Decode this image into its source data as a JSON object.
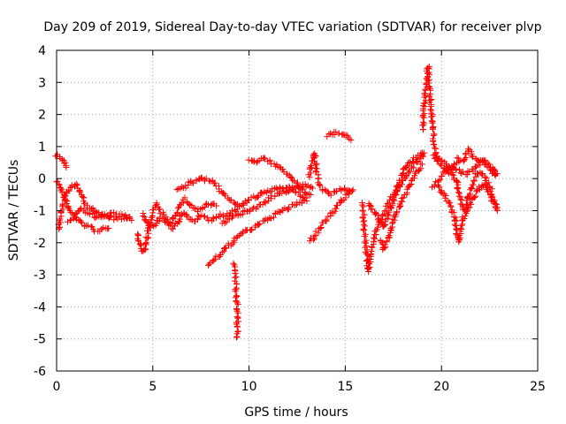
{
  "chart_data": {
    "type": "scatter",
    "title": "Day 209 of 2019, Sidereal Day-to-day VTEC variation (SDTVAR) for receiver plvp",
    "xlabel": "GPS time / hours",
    "ylabel": "SDTVAR / TECUs",
    "xlim": [
      0,
      25
    ],
    "ylim": [
      -6,
      4
    ],
    "xticks": [
      0,
      5,
      10,
      15,
      20,
      25
    ],
    "yticks": [
      -6,
      -5,
      -4,
      -3,
      -2,
      -1,
      0,
      1,
      2,
      3,
      4
    ],
    "grid": true,
    "marker": "+",
    "series_color": "#ff0000",
    "tracks": [
      [
        [
          0.0,
          0.75
        ],
        [
          0.2,
          0.65
        ],
        [
          0.4,
          0.5
        ],
        [
          0.5,
          0.35
        ]
      ],
      [
        [
          0.0,
          -0.05
        ],
        [
          0.2,
          -0.3
        ],
        [
          0.4,
          -0.6
        ],
        [
          0.6,
          -0.9
        ],
        [
          0.8,
          -1.1
        ],
        [
          1.1,
          -1.3
        ],
        [
          1.5,
          -1.45
        ],
        [
          2.0,
          -1.6
        ],
        [
          2.4,
          -1.6
        ],
        [
          2.7,
          -1.55
        ]
      ],
      [
        [
          0.1,
          -1.6
        ],
        [
          0.25,
          -1.1
        ],
        [
          0.45,
          -0.5
        ],
        [
          0.7,
          -0.3
        ],
        [
          0.95,
          -0.15
        ],
        [
          1.2,
          -0.4
        ],
        [
          1.5,
          -0.8
        ],
        [
          1.9,
          -1.0
        ],
        [
          2.3,
          -1.15
        ],
        [
          2.7,
          -1.2
        ],
        [
          3.1,
          -1.25
        ],
        [
          3.5,
          -1.25
        ],
        [
          3.9,
          -1.3
        ]
      ],
      [
        [
          0.6,
          -1.3
        ],
        [
          0.9,
          -1.2
        ],
        [
          1.2,
          -0.9
        ],
        [
          1.6,
          -1.05
        ],
        [
          2.0,
          -1.2
        ],
        [
          2.4,
          -1.15
        ],
        [
          2.9,
          -1.1
        ],
        [
          3.3,
          -1.15
        ],
        [
          3.8,
          -1.2
        ]
      ],
      [
        [
          4.2,
          -1.7
        ],
        [
          4.4,
          -2.3
        ],
        [
          4.6,
          -2.15
        ],
        [
          4.8,
          -1.5
        ],
        [
          5.0,
          -1.0
        ],
        [
          5.2,
          -0.8
        ],
        [
          5.5,
          -1.1
        ],
        [
          5.8,
          -1.4
        ],
        [
          6.1,
          -1.2
        ],
        [
          6.4,
          -0.8
        ],
        [
          6.7,
          -0.65
        ],
        [
          7.0,
          -0.85
        ],
        [
          7.3,
          -1.0
        ],
        [
          7.6,
          -0.9
        ],
        [
          7.9,
          -0.8
        ],
        [
          8.3,
          -0.85
        ]
      ],
      [
        [
          4.5,
          -1.1
        ],
        [
          4.8,
          -1.5
        ],
        [
          5.1,
          -1.45
        ],
        [
          5.4,
          -1.2
        ],
        [
          5.7,
          -1.35
        ],
        [
          6.0,
          -1.55
        ],
        [
          6.3,
          -1.35
        ],
        [
          6.6,
          -1.05
        ],
        [
          6.9,
          -1.25
        ],
        [
          7.2,
          -1.3
        ],
        [
          7.5,
          -1.15
        ],
        [
          7.8,
          -1.25
        ],
        [
          8.1,
          -1.3
        ],
        [
          8.4,
          -1.15
        ],
        [
          8.7,
          -1.2
        ],
        [
          9.0,
          -1.05
        ],
        [
          9.4,
          -0.95
        ],
        [
          9.8,
          -0.75
        ],
        [
          10.2,
          -0.6
        ],
        [
          10.6,
          -0.5
        ],
        [
          11.0,
          -0.4
        ],
        [
          11.4,
          -0.3
        ],
        [
          11.8,
          -0.25
        ],
        [
          12.2,
          -0.3
        ],
        [
          12.6,
          -0.5
        ],
        [
          13.0,
          -0.6
        ]
      ],
      [
        [
          6.3,
          -0.35
        ],
        [
          6.6,
          -0.3
        ],
        [
          6.9,
          -0.15
        ],
        [
          7.3,
          -0.05
        ],
        [
          7.6,
          0.0
        ],
        [
          7.9,
          -0.05
        ],
        [
          8.2,
          -0.15
        ],
        [
          8.5,
          -0.35
        ],
        [
          8.8,
          -0.55
        ],
        [
          9.1,
          -0.7
        ],
        [
          9.4,
          -0.8
        ]
      ],
      [
        [
          7.9,
          -2.7
        ],
        [
          8.2,
          -2.55
        ],
        [
          8.5,
          -2.35
        ],
        [
          8.8,
          -2.2
        ],
        [
          9.1,
          -2.0
        ],
        [
          9.4,
          -1.8
        ],
        [
          9.8,
          -1.65
        ],
        [
          10.2,
          -1.55
        ],
        [
          10.6,
          -1.4
        ],
        [
          11.0,
          -1.25
        ],
        [
          11.4,
          -1.1
        ],
        [
          11.8,
          -1.0
        ],
        [
          12.2,
          -0.85
        ],
        [
          12.6,
          -0.75
        ],
        [
          13.0,
          -0.7
        ]
      ],
      [
        [
          9.2,
          -2.6
        ],
        [
          9.3,
          -3.1
        ],
        [
          9.35,
          -3.6
        ],
        [
          9.4,
          -4.2
        ],
        [
          9.4,
          -4.6
        ],
        [
          9.35,
          -4.95
        ]
      ],
      [
        [
          10.0,
          0.6
        ],
        [
          10.4,
          0.55
        ],
        [
          10.8,
          0.6
        ],
        [
          11.2,
          0.5
        ],
        [
          11.6,
          0.3
        ],
        [
          12.0,
          0.15
        ],
        [
          12.3,
          -0.05
        ],
        [
          12.6,
          -0.25
        ],
        [
          12.9,
          -0.4
        ],
        [
          13.2,
          -0.5
        ]
      ],
      [
        [
          8.6,
          -1.4
        ],
        [
          8.9,
          -1.3
        ],
        [
          9.3,
          -1.15
        ],
        [
          9.7,
          -1.05
        ],
        [
          10.1,
          -0.95
        ],
        [
          10.5,
          -0.85
        ],
        [
          10.9,
          -0.7
        ],
        [
          11.3,
          -0.55
        ],
        [
          11.7,
          -0.45
        ],
        [
          12.1,
          -0.35
        ],
        [
          12.5,
          -0.25
        ],
        [
          12.9,
          -0.2
        ],
        [
          13.3,
          -0.3
        ]
      ],
      [
        [
          13.1,
          0.1
        ],
        [
          13.3,
          0.5
        ],
        [
          13.4,
          0.8
        ],
        [
          13.5,
          0.3
        ],
        [
          13.6,
          -0.1
        ],
        [
          13.8,
          -0.3
        ],
        [
          14.2,
          -0.5
        ],
        [
          14.6,
          -0.35
        ],
        [
          15.0,
          -0.3
        ],
        [
          15.3,
          -0.4
        ]
      ],
      [
        [
          13.2,
          -1.95
        ],
        [
          13.6,
          -1.6
        ],
        [
          14.0,
          -1.3
        ],
        [
          14.4,
          -1.05
        ],
        [
          14.8,
          -0.7
        ],
        [
          15.2,
          -0.45
        ],
        [
          15.4,
          -0.35
        ]
      ],
      [
        [
          14.1,
          1.35
        ],
        [
          14.4,
          1.4
        ],
        [
          14.7,
          1.45
        ],
        [
          15.0,
          1.35
        ],
        [
          15.3,
          1.2
        ]
      ],
      [
        [
          15.9,
          -0.8
        ],
        [
          16.0,
          -1.6
        ],
        [
          16.1,
          -2.3
        ],
        [
          16.2,
          -2.9
        ],
        [
          16.4,
          -2.1
        ],
        [
          16.6,
          -1.6
        ],
        [
          16.9,
          -1.2
        ],
        [
          17.2,
          -0.8
        ],
        [
          17.6,
          -0.4
        ],
        [
          18.0,
          -0.05
        ],
        [
          18.4,
          0.3
        ],
        [
          18.8,
          0.55
        ],
        [
          19.1,
          0.8
        ]
      ],
      [
        [
          16.2,
          -0.75
        ],
        [
          16.5,
          -1.0
        ],
        [
          16.8,
          -1.3
        ],
        [
          17.0,
          -1.5
        ],
        [
          17.2,
          -1.2
        ],
        [
          17.5,
          -0.7
        ],
        [
          17.8,
          -0.1
        ],
        [
          18.1,
          0.3
        ],
        [
          18.4,
          0.55
        ],
        [
          18.7,
          0.65
        ],
        [
          19.0,
          0.8
        ]
      ],
      [
        [
          16.8,
          -1.9
        ],
        [
          17.0,
          -2.2
        ],
        [
          17.2,
          -1.9
        ],
        [
          17.5,
          -1.3
        ],
        [
          17.8,
          -0.9
        ],
        [
          18.1,
          -0.5
        ],
        [
          18.4,
          -0.15
        ],
        [
          18.7,
          0.2
        ],
        [
          19.0,
          0.45
        ]
      ],
      [
        [
          19.0,
          1.5
        ],
        [
          19.1,
          2.2
        ],
        [
          19.2,
          2.9
        ],
        [
          19.3,
          3.5
        ],
        [
          19.4,
          2.6
        ],
        [
          19.5,
          1.9
        ],
        [
          19.6,
          1.2
        ],
        [
          19.7,
          0.7
        ],
        [
          19.9,
          0.45
        ],
        [
          20.2,
          0.3
        ],
        [
          20.5,
          0.15
        ],
        [
          20.8,
          -0.1
        ],
        [
          21.0,
          -0.7
        ],
        [
          21.2,
          -1.0
        ],
        [
          21.4,
          -0.6
        ],
        [
          21.6,
          -0.2
        ],
        [
          21.8,
          0.1
        ],
        [
          22.0,
          0.2
        ],
        [
          22.3,
          0.0
        ],
        [
          22.6,
          -0.4
        ],
        [
          22.9,
          -1.0
        ]
      ],
      [
        [
          19.6,
          0.7
        ],
        [
          19.9,
          0.6
        ],
        [
          20.2,
          0.45
        ],
        [
          20.5,
          0.3
        ],
        [
          20.8,
          0.6
        ],
        [
          21.1,
          0.55
        ],
        [
          21.4,
          0.9
        ],
        [
          21.6,
          0.75
        ],
        [
          21.9,
          0.6
        ],
        [
          22.2,
          0.5
        ],
        [
          22.5,
          0.3
        ],
        [
          22.8,
          0.1
        ]
      ],
      [
        [
          19.8,
          -0.2
        ],
        [
          20.1,
          -0.45
        ],
        [
          20.4,
          -0.8
        ],
        [
          20.7,
          -1.2
        ],
        [
          20.8,
          -1.7
        ],
        [
          20.9,
          -2.0
        ],
        [
          21.1,
          -1.3
        ],
        [
          21.4,
          -0.9
        ],
        [
          21.7,
          -0.6
        ],
        [
          22.0,
          -0.25
        ],
        [
          22.3,
          -0.2
        ],
        [
          22.6,
          -0.6
        ],
        [
          22.9,
          -0.9
        ]
      ],
      [
        [
          19.5,
          -0.3
        ],
        [
          19.8,
          -0.1
        ],
        [
          20.1,
          0.2
        ],
        [
          20.5,
          0.35
        ],
        [
          20.9,
          0.25
        ],
        [
          21.3,
          0.15
        ],
        [
          21.7,
          0.3
        ],
        [
          22.1,
          0.55
        ],
        [
          22.5,
          0.45
        ],
        [
          22.9,
          0.15
        ]
      ]
    ]
  }
}
